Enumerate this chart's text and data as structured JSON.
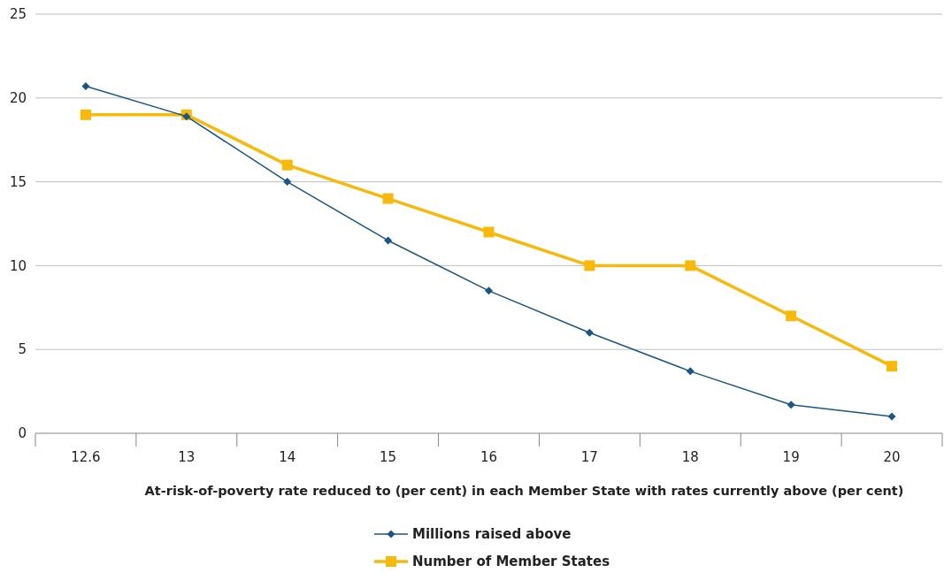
{
  "chart_data": {
    "type": "line",
    "xlabel": "At-risk-of-poverty rate reduced to (per cent) in each Member State with rates currently above (per cent)",
    "categories": [
      "12.6",
      "13",
      "14",
      "15",
      "16",
      "17",
      "18",
      "19",
      "20"
    ],
    "series": [
      {
        "name": "Millions raised above",
        "color": "#1a5584",
        "marker": "diamond",
        "values": [
          20.7,
          18.9,
          15.0,
          11.5,
          8.5,
          6.0,
          3.7,
          1.7,
          1.0
        ]
      },
      {
        "name": "Number of Member States",
        "color": "#f6b90c",
        "marker": "square",
        "values": [
          19,
          19,
          16,
          14,
          12,
          10,
          10,
          7,
          4
        ]
      }
    ],
    "ylim": [
      0,
      25
    ],
    "yticks": [
      0,
      5,
      10,
      15,
      20,
      25
    ],
    "grid": "y",
    "legend": "bottom"
  }
}
